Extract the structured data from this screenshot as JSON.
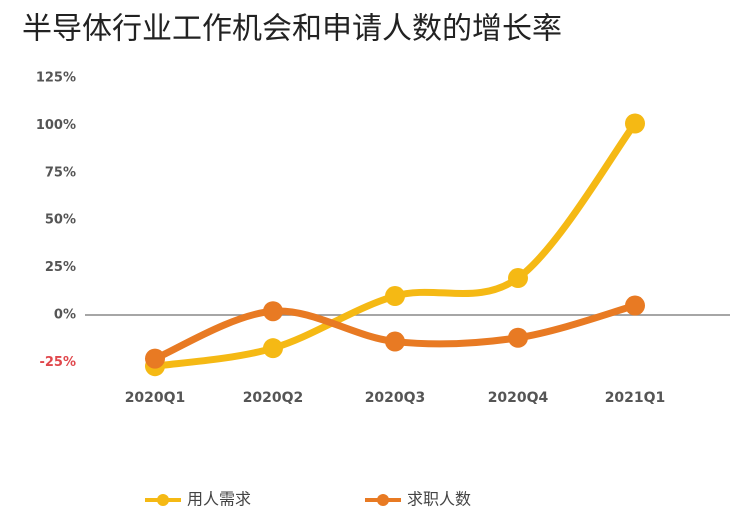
{
  "chart_data": {
    "type": "line",
    "title": "半导体行业工作机会和申请人数的增长率",
    "categories": [
      "2020Q1",
      "2020Q2",
      "2020Q3",
      "2020Q4",
      "2021Q1"
    ],
    "series": [
      {
        "name": "用人需求",
        "color": "#f5b914",
        "values": [
          -27,
          -17.5,
          10,
          19.5,
          101
        ]
      },
      {
        "name": "求职人数",
        "color": "#e87a23",
        "values": [
          -23,
          2,
          -14,
          -12,
          5
        ]
      }
    ],
    "ylim": [
      -25,
      125
    ],
    "yticks": [
      {
        "value": 125,
        "label": "125%"
      },
      {
        "value": 100,
        "label": "100%"
      },
      {
        "value": 75,
        "label": "75%"
      },
      {
        "value": 50,
        "label": "50%"
      },
      {
        "value": 25,
        "label": "25%"
      },
      {
        "value": 0,
        "label": "0%"
      },
      {
        "value": -25,
        "label": "-25%"
      }
    ],
    "smooth": true,
    "legend": "bottom"
  }
}
